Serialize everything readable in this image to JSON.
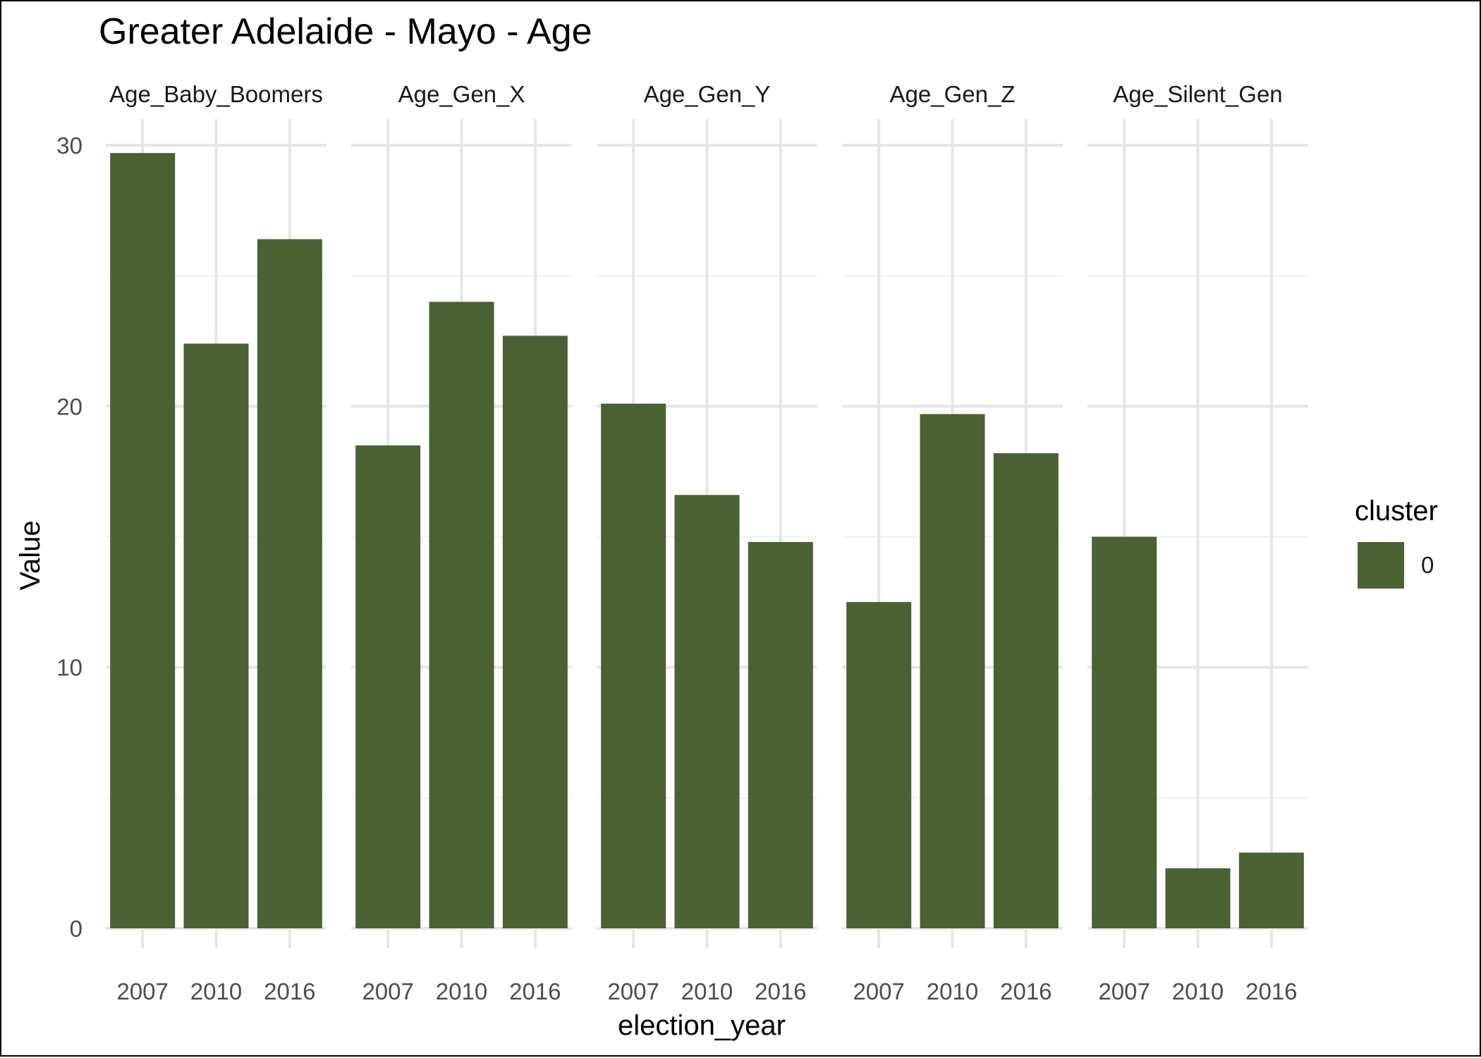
{
  "chart_data": {
    "type": "bar",
    "title": "Greater Adelaide - Mayo - Age",
    "xlabel": "election_year",
    "ylabel": "Value",
    "ylim": [
      0,
      31
    ],
    "yticks": [
      0,
      10,
      20,
      30
    ],
    "categories": [
      "2007",
      "2010",
      "2016"
    ],
    "facets": [
      {
        "name": "Age_Baby_Boomers",
        "values": [
          29.7,
          22.4,
          26.4
        ]
      },
      {
        "name": "Age_Gen_X",
        "values": [
          18.5,
          24.0,
          22.7
        ]
      },
      {
        "name": "Age_Gen_Y",
        "values": [
          20.1,
          16.6,
          14.8
        ]
      },
      {
        "name": "Age_Gen_Z",
        "values": [
          12.5,
          19.7,
          18.2
        ]
      },
      {
        "name": "Age_Silent_Gen",
        "values": [
          15.0,
          2.3,
          2.9
        ]
      }
    ],
    "legend": {
      "title": "cluster",
      "items": [
        {
          "label": "0",
          "color": "#4a6133"
        }
      ]
    },
    "bar_color": "#4a6133",
    "grid": true,
    "legend_position": "right"
  }
}
